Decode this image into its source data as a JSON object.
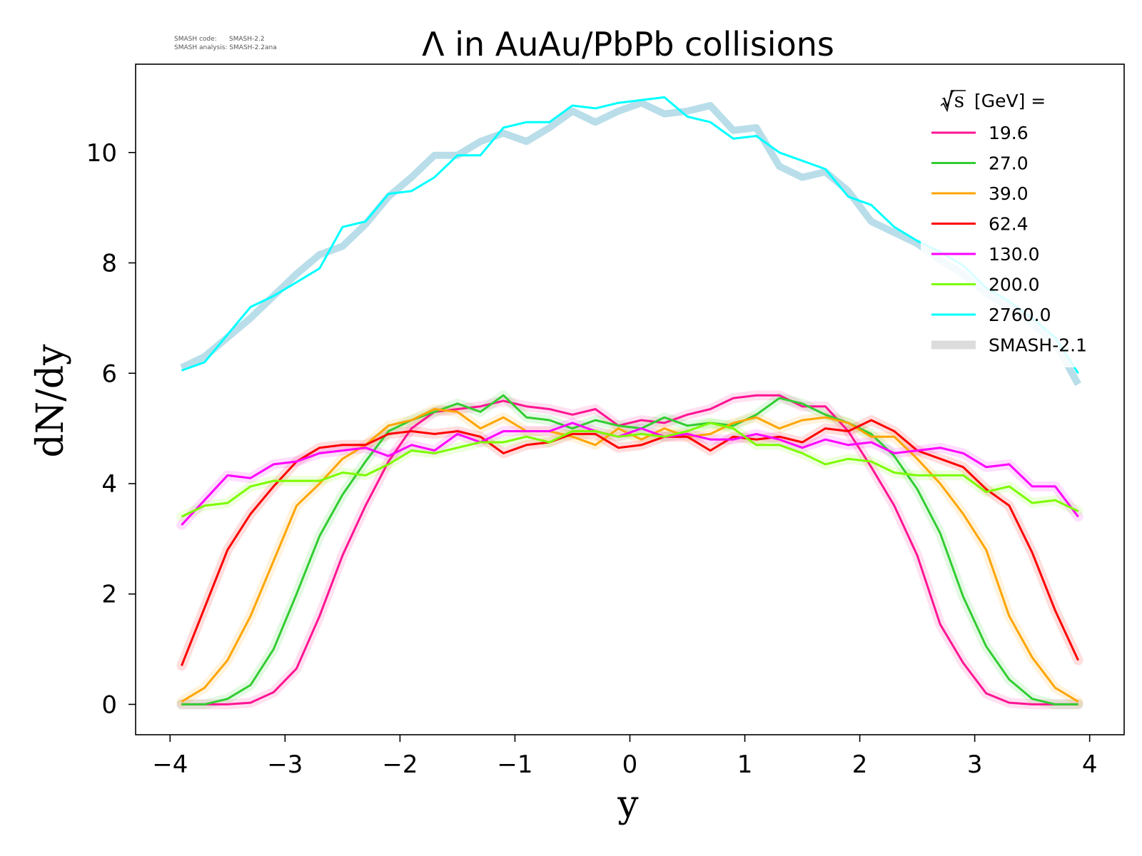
{
  "meta": {
    "code_line": "SMASH code:      SMASH-2.2",
    "analysis_line": "SMASH analysis: SMASH-2.2ana"
  },
  "chart_data": {
    "type": "line",
    "title": "Λ in AuAu/PbPb collisions",
    "xlabel": "y",
    "ylabel": "dN/dy",
    "xlim": [
      -4.3,
      4.3
    ],
    "ylim": [
      -0.55,
      11.6
    ],
    "xticks": [
      -4,
      -3,
      -2,
      -1,
      0,
      1,
      2,
      3,
      4
    ],
    "xtick_labels": [
      "−4",
      "−3",
      "−2",
      "−1",
      "0",
      "1",
      "2",
      "3",
      "4"
    ],
    "yticks": [
      0,
      2,
      4,
      6,
      8,
      10
    ],
    "ytick_labels": [
      "0",
      "2",
      "4",
      "6",
      "8",
      "10"
    ],
    "grid": false,
    "legend_position": "top-right",
    "legend_title_sqrt": "√s",
    "legend_title_rest": "[GeV] =",
    "x": [
      -3.9,
      -3.7,
      -3.5,
      -3.3,
      -3.1,
      -2.9,
      -2.7,
      -2.5,
      -2.3,
      -2.1,
      -1.9,
      -1.7,
      -1.5,
      -1.3,
      -1.1,
      -0.9,
      -0.7,
      -0.5,
      -0.3,
      -0.1,
      0.1,
      0.3,
      0.5,
      0.7,
      0.9,
      1.1,
      1.3,
      1.5,
      1.7,
      1.9,
      2.1,
      2.3,
      2.5,
      2.7,
      2.9,
      3.1,
      3.3,
      3.5,
      3.7,
      3.9
    ],
    "series": [
      {
        "name": "19.6",
        "color": "#ff1493",
        "values": [
          0.0,
          0.0,
          0.0,
          0.03,
          0.22,
          0.65,
          1.6,
          2.7,
          3.6,
          4.4,
          5.0,
          5.3,
          5.35,
          5.4,
          5.5,
          5.4,
          5.35,
          5.25,
          5.35,
          5.05,
          5.15,
          5.1,
          5.25,
          5.35,
          5.55,
          5.6,
          5.6,
          5.4,
          5.4,
          4.95,
          4.3,
          3.6,
          2.7,
          1.45,
          0.75,
          0.2,
          0.03,
          0.0,
          0.0,
          0.0
        ]
      },
      {
        "name": "27.0",
        "color": "#32cd32",
        "values": [
          0.0,
          0.0,
          0.1,
          0.35,
          1.0,
          2.0,
          3.05,
          3.8,
          4.4,
          4.95,
          5.15,
          5.3,
          5.45,
          5.3,
          5.6,
          5.2,
          5.15,
          5.0,
          5.15,
          5.05,
          5.0,
          5.2,
          5.05,
          5.1,
          5.05,
          5.25,
          5.55,
          5.45,
          5.25,
          5.1,
          4.9,
          4.5,
          3.9,
          3.1,
          1.95,
          1.05,
          0.45,
          0.1,
          0.0,
          0.0
        ]
      },
      {
        "name": "39.0",
        "color": "#ffa500",
        "values": [
          0.05,
          0.3,
          0.8,
          1.6,
          2.6,
          3.6,
          4.0,
          4.45,
          4.7,
          5.05,
          5.15,
          5.35,
          5.3,
          5.0,
          5.2,
          4.95,
          4.95,
          4.85,
          4.7,
          5.0,
          4.8,
          5.0,
          4.85,
          4.9,
          5.1,
          5.2,
          5.0,
          5.15,
          5.2,
          5.1,
          4.85,
          4.85,
          4.45,
          4.0,
          3.45,
          2.8,
          1.6,
          0.85,
          0.3,
          0.05
        ]
      },
      {
        "name": "62.4",
        "color": "#ff0000",
        "values": [
          0.7,
          1.75,
          2.8,
          3.45,
          3.95,
          4.4,
          4.65,
          4.7,
          4.7,
          4.9,
          4.95,
          4.9,
          4.95,
          4.85,
          4.55,
          4.7,
          4.75,
          4.9,
          4.9,
          4.65,
          4.7,
          4.85,
          4.85,
          4.6,
          4.85,
          4.8,
          4.85,
          4.75,
          5.0,
          4.95,
          5.15,
          4.95,
          4.6,
          4.45,
          4.3,
          3.9,
          3.6,
          2.75,
          1.7,
          0.8
        ]
      },
      {
        "name": "130.0",
        "color": "#ff00ff",
        "values": [
          3.25,
          3.7,
          4.15,
          4.1,
          4.35,
          4.4,
          4.55,
          4.6,
          4.65,
          4.5,
          4.7,
          4.6,
          4.9,
          4.75,
          4.95,
          4.95,
          4.95,
          5.1,
          4.95,
          4.85,
          5.0,
          4.85,
          4.9,
          4.8,
          4.8,
          4.9,
          4.8,
          4.65,
          4.8,
          4.7,
          4.75,
          4.55,
          4.6,
          4.65,
          4.55,
          4.3,
          4.35,
          3.95,
          3.95,
          3.4
        ]
      },
      {
        "name": "200.0",
        "color": "#7cfc00",
        "values": [
          3.4,
          3.6,
          3.65,
          3.95,
          4.05,
          4.05,
          4.05,
          4.2,
          4.15,
          4.35,
          4.6,
          4.55,
          4.65,
          4.75,
          4.75,
          4.85,
          4.75,
          4.95,
          4.95,
          4.85,
          4.9,
          4.85,
          4.95,
          5.1,
          5.0,
          4.7,
          4.7,
          4.55,
          4.35,
          4.45,
          4.4,
          4.2,
          4.15,
          4.15,
          4.15,
          3.85,
          3.95,
          3.65,
          3.7,
          3.5
        ]
      },
      {
        "name": "2760.0",
        "color": "#00ffff",
        "values": [
          6.05,
          6.2,
          6.7,
          7.2,
          7.4,
          7.65,
          7.9,
          8.65,
          8.75,
          9.25,
          9.3,
          9.55,
          9.95,
          9.95,
          10.45,
          10.55,
          10.55,
          10.85,
          10.8,
          10.9,
          10.95,
          11.0,
          10.65,
          10.55,
          10.25,
          10.3,
          10.0,
          9.85,
          9.7,
          9.2,
          9.05,
          8.65,
          8.4,
          8.2,
          7.95,
          7.55,
          7.3,
          7.0,
          6.65,
          6.0
        ]
      },
      {
        "name": "SMASH-2.1",
        "color": "#d3d3d3",
        "reference": true,
        "values_2760": [
          6.1,
          6.3,
          6.65,
          7.0,
          7.4,
          7.8,
          8.15,
          8.3,
          8.7,
          9.2,
          9.55,
          9.95,
          9.95,
          10.2,
          10.35,
          10.2,
          10.45,
          10.75,
          10.55,
          10.75,
          10.9,
          10.7,
          10.75,
          10.85,
          10.4,
          10.45,
          9.75,
          9.55,
          9.65,
          9.3,
          8.75,
          8.55,
          8.35,
          8.05,
          7.8,
          7.45,
          7.2,
          6.9,
          6.55,
          5.8
        ]
      }
    ]
  }
}
